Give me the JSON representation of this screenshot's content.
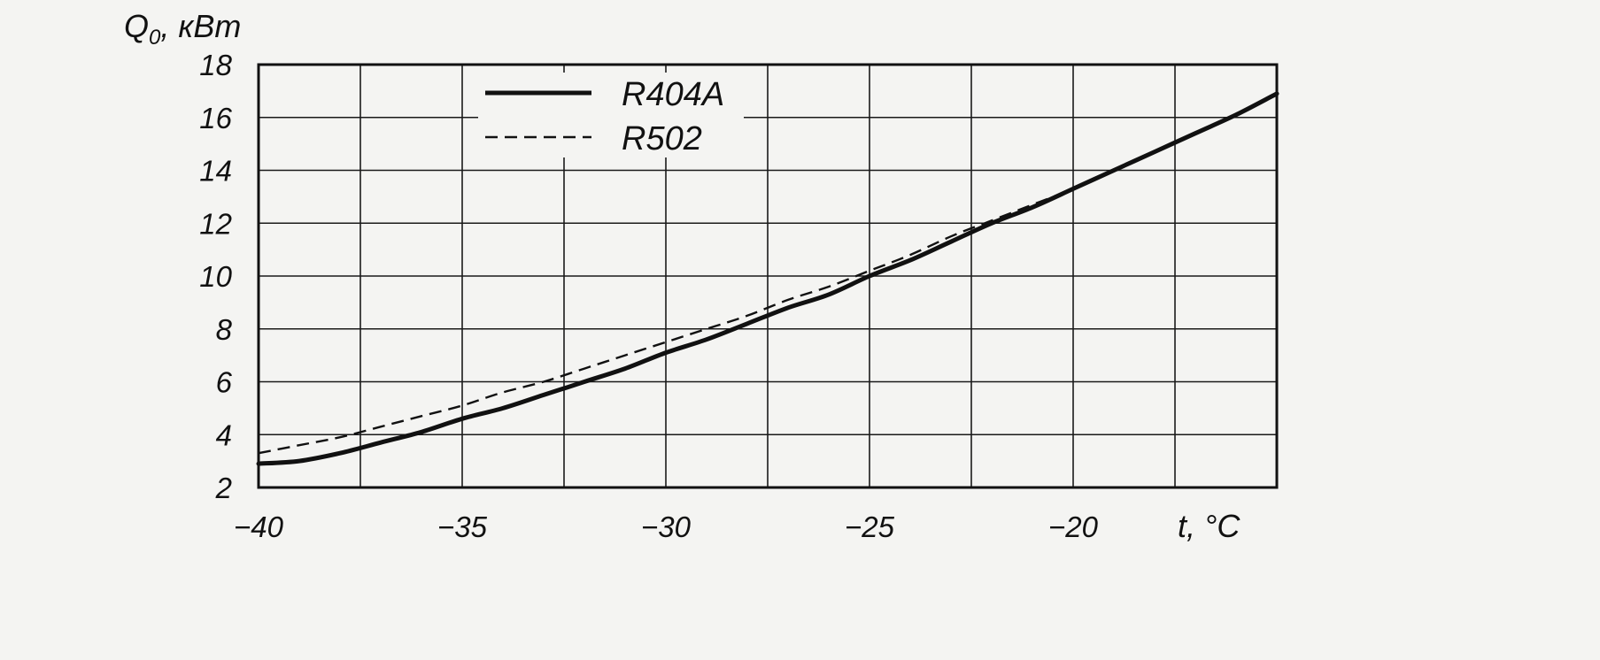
{
  "chart_data": {
    "type": "line",
    "title": "",
    "xlabel": "t, °C",
    "ylabel": "Q0, кВт",
    "ylabel_main": "Q",
    "ylabel_sub": "0",
    "ylabel_rest": ", кВт",
    "xlim": [
      -40,
      -15
    ],
    "ylim": [
      2,
      18
    ],
    "x_ticks": [
      -40,
      -35,
      -30,
      -25,
      -20
    ],
    "x_tick_labels": [
      "−40",
      "−35",
      "−30",
      "−25",
      "−20"
    ],
    "y_ticks": [
      2,
      4,
      6,
      8,
      10,
      12,
      14,
      16,
      18
    ],
    "y_tick_labels": [
      "2",
      "4",
      "6",
      "8",
      "10",
      "12",
      "14",
      "16",
      "18"
    ],
    "grid": true,
    "legend_position": "top-left",
    "series": [
      {
        "name": "R404A",
        "style": "solid",
        "color": "#111111",
        "x": [
          -40,
          -39,
          -38,
          -37,
          -36,
          -35,
          -34,
          -33,
          -32,
          -31,
          -30,
          -29,
          -28,
          -27,
          -26,
          -25,
          -24,
          -23,
          -22,
          -21,
          -20,
          -19,
          -18,
          -17,
          -16,
          -15
        ],
        "y": [
          2.9,
          3.0,
          3.3,
          3.7,
          4.1,
          4.6,
          5.0,
          5.5,
          6.0,
          6.5,
          7.1,
          7.6,
          8.2,
          8.8,
          9.3,
          10.0,
          10.6,
          11.3,
          12.0,
          12.6,
          13.3,
          14.0,
          14.7,
          15.4,
          16.1,
          16.9
        ]
      },
      {
        "name": "R502",
        "style": "dashed",
        "color": "#111111",
        "x": [
          -40,
          -39,
          -38,
          -37,
          -36,
          -35,
          -34,
          -33,
          -32,
          -31,
          -30,
          -29,
          -28,
          -27,
          -26,
          -25,
          -24,
          -23,
          -22,
          -21,
          -20,
          -19,
          -18,
          -17,
          -16,
          -15
        ],
        "y": [
          3.3,
          3.6,
          3.9,
          4.3,
          4.7,
          5.1,
          5.6,
          6.0,
          6.5,
          7.0,
          7.5,
          8.0,
          8.5,
          9.1,
          9.6,
          10.2,
          10.8,
          11.5,
          12.1,
          12.7,
          13.3,
          14.0,
          14.7,
          15.4,
          16.1,
          16.9
        ]
      }
    ]
  }
}
